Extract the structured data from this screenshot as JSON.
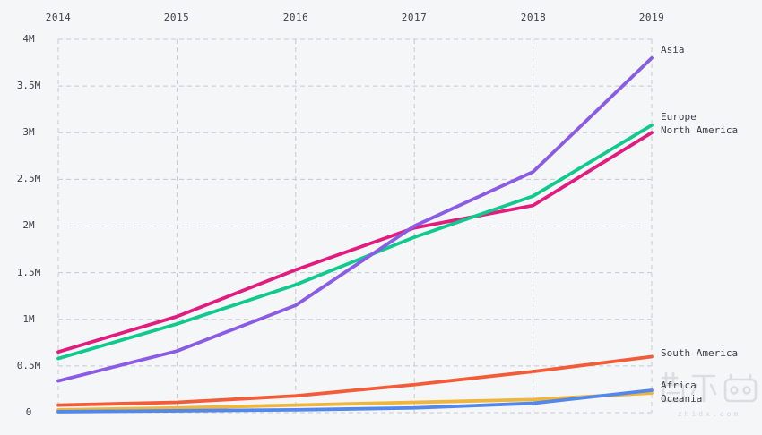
{
  "chart_data": {
    "type": "line",
    "x": [
      2014,
      2015,
      2016,
      2017,
      2018,
      2019
    ],
    "x_labels": [
      "2014",
      "2015",
      "2016",
      "2017",
      "2018",
      "2019"
    ],
    "y_tick_labels": [
      "4M",
      "3.5M",
      "3M",
      "2.5M",
      "2M",
      "1.5M",
      "1M",
      "0.5M",
      "0"
    ],
    "y_tick_values": [
      4,
      3.5,
      3,
      2.5,
      2,
      1.5,
      1,
      0.5,
      0
    ],
    "ylim": [
      0,
      4
    ],
    "unit": "M",
    "grid": "dashed",
    "legend_position": "right-end-labels",
    "series": [
      {
        "name": "Asia",
        "color": "#8a5ce6",
        "values": [
          0.34,
          0.66,
          1.15,
          2.0,
          2.58,
          3.8
        ]
      },
      {
        "name": "Europe",
        "color": "#10c98d",
        "values": [
          0.58,
          0.95,
          1.37,
          1.88,
          2.32,
          3.08
        ]
      },
      {
        "name": "North America",
        "color": "#e21c7f",
        "values": [
          0.65,
          1.03,
          1.53,
          1.98,
          2.22,
          3.0
        ]
      },
      {
        "name": "South America",
        "color": "#f25c38",
        "values": [
          0.08,
          0.11,
          0.18,
          0.3,
          0.44,
          0.6
        ]
      },
      {
        "name": "Africa",
        "color": "#eeb63c",
        "values": [
          0.03,
          0.05,
          0.08,
          0.11,
          0.14,
          0.21
        ]
      },
      {
        "name": "Oceania",
        "color": "#5287ee",
        "values": [
          0.01,
          0.02,
          0.03,
          0.05,
          0.1,
          0.24
        ]
      }
    ]
  },
  "watermark": {
    "url_text": "zhidx.com"
  },
  "colors": {
    "background": "#f5f6f8",
    "grid": "#c7c9ce",
    "label": "#3b3f46",
    "watermark": "#d7d9dd"
  }
}
